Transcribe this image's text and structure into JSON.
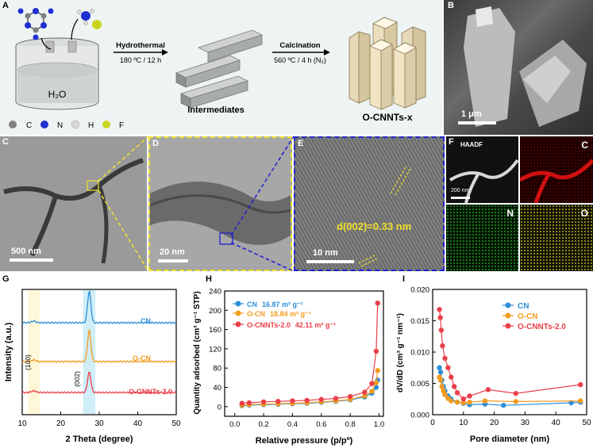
{
  "panel_a": {
    "label": "A",
    "atoms": [
      {
        "symbol": "C",
        "color": "#808080"
      },
      {
        "symbol": "N",
        "color": "#1f2fd0"
      },
      {
        "symbol": "H",
        "color": "#d8d8d8"
      },
      {
        "symbol": "F",
        "color": "#c8d620"
      }
    ],
    "water": "H₂O",
    "step1_title": "Hydrothermal",
    "step1_cond": "180 ºC / 12 h",
    "step2_title": "Calcination",
    "step2_cond": "560 ºC / 4 h (N₂)",
    "intermediate_label": "Intermediates",
    "product_label": "O-CNNTs-x"
  },
  "panel_b": {
    "label": "B",
    "scale": "1 μm"
  },
  "panel_c": {
    "label": "C",
    "scale": "500 nm"
  },
  "panel_d": {
    "label": "D",
    "scale": "20 nm"
  },
  "panel_e": {
    "label": "E",
    "scale": "10 nm",
    "annotation": "d(002)=0.33 nm"
  },
  "panel_f": {
    "label": "F",
    "haadf": "HAADF",
    "scale": "200 nm",
    "maps": [
      {
        "element": "C",
        "color": "#d01010"
      },
      {
        "element": "N",
        "color": "#10c010"
      },
      {
        "element": "O",
        "color": "#d8d020"
      }
    ]
  },
  "panel_g": {
    "label": "G"
  },
  "panel_h": {
    "label": "H"
  },
  "panel_i": {
    "label": "I"
  },
  "chart_data": [
    {
      "type": "line",
      "panel": "G",
      "xlabel": "2 Theta (degree)",
      "ylabel": "Intensity (a.u.)",
      "xlim": [
        10,
        50
      ],
      "xticks": [
        10,
        20,
        30,
        40,
        50
      ],
      "series": [
        {
          "name": "CN",
          "color": "#2b8fd8"
        },
        {
          "name": "O-CN",
          "color": "#f39b1e"
        },
        {
          "name": "O-CNNTs-2.0",
          "color": "#e8404a"
        }
      ],
      "peaks": [
        {
          "label": "(100)",
          "position": 13.0
        },
        {
          "label": "(002)",
          "position": 27.4
        }
      ]
    },
    {
      "type": "line",
      "panel": "H",
      "xlabel": "Relative pressure (p/pº)",
      "ylabel": "Quantity adsorbed (cm³ g⁻¹ STP)",
      "xlim": [
        0.0,
        1.0
      ],
      "ylim": [
        0,
        240
      ],
      "xticks": [
        0.0,
        0.2,
        0.4,
        0.6,
        0.8,
        1.0
      ],
      "yticks": [
        0,
        40,
        80,
        120,
        160,
        200,
        240
      ],
      "series": [
        {
          "name": "CN",
          "area": "16.87 m² g⁻¹",
          "color": "#2b8fd8",
          "x": [
            0.05,
            0.1,
            0.2,
            0.3,
            0.4,
            0.5,
            0.6,
            0.7,
            0.8,
            0.9,
            0.95,
            0.98,
            0.99
          ],
          "y": [
            2,
            3,
            4,
            5,
            6,
            7,
            9,
            11,
            14,
            20,
            28,
            40,
            55
          ]
        },
        {
          "name": "O-CN",
          "area": "18.84 m² g⁻¹",
          "color": "#f39b1e",
          "x": [
            0.05,
            0.1,
            0.2,
            0.3,
            0.4,
            0.5,
            0.6,
            0.7,
            0.8,
            0.9,
            0.95,
            0.98,
            0.99
          ],
          "y": [
            3,
            4,
            5,
            6,
            7,
            8,
            10,
            12,
            15,
            22,
            32,
            50,
            75
          ]
        },
        {
          "name": "O-CNNTs-2.0",
          "area": "42.11 m² g⁻¹",
          "color": "#e8404a",
          "x": [
            0.05,
            0.1,
            0.2,
            0.3,
            0.4,
            0.5,
            0.6,
            0.7,
            0.8,
            0.9,
            0.95,
            0.98,
            0.99
          ],
          "y": [
            7,
            8,
            10,
            11,
            12,
            13,
            15,
            17,
            21,
            30,
            48,
            115,
            215
          ]
        }
      ]
    },
    {
      "type": "line",
      "panel": "I",
      "xlabel": "Pore diameter (nm)",
      "ylabel": "dV/dD (cm³ g⁻¹ nm⁻¹)",
      "xlim": [
        0,
        50
      ],
      "ylim": [
        0.0,
        0.02
      ],
      "xticks": [
        0,
        10,
        20,
        30,
        40,
        50
      ],
      "yticks": [
        0.0,
        0.005,
        0.01,
        0.015,
        0.02
      ],
      "series": [
        {
          "name": "CN",
          "color": "#2b8fd8",
          "x": [
            2.2,
            2.6,
            3,
            3.5,
            4,
            5,
            6,
            8,
            10,
            12,
            17,
            23,
            45,
            48
          ],
          "y": [
            0.0075,
            0.0068,
            0.0055,
            0.0045,
            0.0038,
            0.003,
            0.0025,
            0.002,
            0.0018,
            0.0016,
            0.0017,
            0.0015,
            0.0019,
            0.002
          ]
        },
        {
          "name": "O-CN",
          "color": "#f39b1e",
          "x": [
            2.2,
            2.6,
            3,
            3.5,
            4,
            5,
            6,
            8,
            10,
            12,
            17,
            27,
            48
          ],
          "y": [
            0.006,
            0.0055,
            0.0045,
            0.0038,
            0.0032,
            0.0026,
            0.0022,
            0.002,
            0.0019,
            0.002,
            0.0022,
            0.0021,
            0.0022
          ]
        },
        {
          "name": "O-CNNTs-2.0",
          "color": "#e8404a",
          "x": [
            2.2,
            2.5,
            2.8,
            3.2,
            4,
            5,
            6,
            7,
            8,
            10,
            12,
            18,
            27,
            48
          ],
          "y": [
            0.0168,
            0.0155,
            0.0135,
            0.011,
            0.009,
            0.0075,
            0.006,
            0.0045,
            0.0035,
            0.0025,
            0.003,
            0.004,
            0.0034,
            0.0048
          ]
        }
      ]
    }
  ]
}
